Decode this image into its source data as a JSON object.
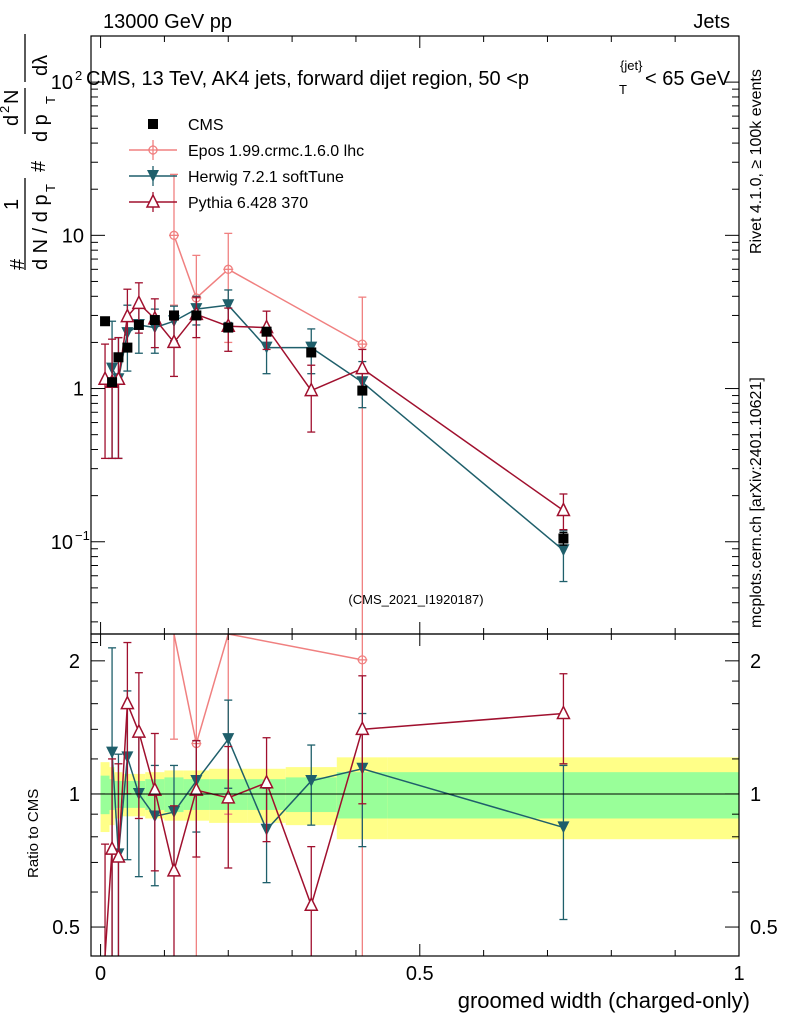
{
  "header": {
    "left": "13000 GeV pp",
    "right": "Jets"
  },
  "side": {
    "rivet": "Rivet 4.1.0, ≥ 100k events",
    "mcplots": "mcplots.cern.ch [arXiv:2401.10621]"
  },
  "colors": {
    "cms": "#000000",
    "epos": "#f08080",
    "herwig": "#1f5f6b",
    "pythia": "#a0102e",
    "band_inner": "#99ff99",
    "band_outer": "#ffff88"
  },
  "chart_data": {
    "type": "scatter",
    "title": "CMS, 13 TeV, AK4 jets, forward dijet region, 50 <p_T^{jet}< 65 GeV",
    "title_main": "CMS, 13 TeV, AK4 jets, forward dijet region, 50 <p",
    "title_sub": "T",
    "title_sup": "{jet}",
    "title_tail": "< 65 GeV",
    "watermark": "(CMS_2021_I1920187)",
    "xlabel": "groomed width (charged-only)",
    "ylabel_main": "1/dN/dp_T #  d²N/dp_T# dλ",
    "ylabel_parts": [
      "#",
      "1",
      "d N / d p",
      "T",
      "#",
      "d",
      "2",
      "N",
      "d p",
      "T",
      "dλ"
    ],
    "ratio_ylabel": "Ratio to CMS",
    "xlim": [
      -0.015,
      1.0
    ],
    "ylim": [
      0.025,
      200
    ],
    "yscale": "log",
    "ratio_ylim": [
      0.43,
      2.3
    ],
    "x_ticks": [
      {
        "v": 0,
        "label": "0"
      },
      {
        "v": 0.5,
        "label": "0.5"
      },
      {
        "v": 1,
        "label": "1"
      }
    ],
    "y_ticks": [
      {
        "v": 0.1,
        "label": "10",
        "exp": "−1"
      },
      {
        "v": 1,
        "label": "1",
        "exp": ""
      },
      {
        "v": 10,
        "label": "10",
        "exp": ""
      },
      {
        "v": 100,
        "label": "10",
        "exp": "2"
      }
    ],
    "ratio_ticks": [
      {
        "v": 0.5,
        "label": "0.5"
      },
      {
        "v": 1,
        "label": "1"
      },
      {
        "v": 2,
        "label": "2"
      }
    ],
    "legend": [
      "CMS",
      "Epos 1.99.crmc.1.6.0 lhc",
      "Herwig 7.2.1 softTune",
      "Pythia 6.428 370"
    ],
    "bins": [
      {
        "lo": 0.0,
        "hi": 0.014
      },
      {
        "lo": 0.014,
        "hi": 0.022
      },
      {
        "lo": 0.022,
        "hi": 0.034
      },
      {
        "lo": 0.034,
        "hi": 0.05
      },
      {
        "lo": 0.05,
        "hi": 0.07
      },
      {
        "lo": 0.07,
        "hi": 0.1
      },
      {
        "lo": 0.1,
        "hi": 0.13
      },
      {
        "lo": 0.13,
        "hi": 0.17
      },
      {
        "lo": 0.17,
        "hi": 0.23
      },
      {
        "lo": 0.23,
        "hi": 0.29
      },
      {
        "lo": 0.29,
        "hi": 0.37
      },
      {
        "lo": 0.37,
        "hi": 0.45
      },
      {
        "lo": 0.45,
        "hi": 1.0
      }
    ],
    "band_inner": [
      0.1,
      0.08,
      0.07,
      0.07,
      0.07,
      0.08,
      0.09,
      0.08,
      0.08,
      0.08,
      0.09,
      0.12,
      0.12
    ],
    "band_outer": [
      0.18,
      0.15,
      0.12,
      0.11,
      0.11,
      0.12,
      0.13,
      0.13,
      0.14,
      0.14,
      0.15,
      0.21,
      0.21
    ],
    "series": [
      {
        "name": "CMS",
        "key": "cms",
        "marker": "square",
        "x": [
          0.007,
          0.018,
          0.028,
          0.042,
          0.06,
          0.085,
          0.115,
          0.15,
          0.2,
          0.26,
          0.33,
          0.41,
          0.725
        ],
        "y": [
          2.75,
          1.1,
          1.6,
          1.85,
          2.6,
          2.8,
          3.0,
          3.0,
          2.5,
          2.35,
          1.72,
          0.97,
          0.105
        ],
        "yerr_lo": [
          0.1,
          0.05,
          0.07,
          0.08,
          0.1,
          0.1,
          0.1,
          0.12,
          0.1,
          0.1,
          0.08,
          0.06,
          0.01
        ],
        "yerr_hi": [
          0.1,
          0.05,
          0.07,
          0.08,
          0.1,
          0.1,
          0.1,
          0.12,
          0.1,
          0.1,
          0.08,
          0.06,
          0.01
        ],
        "ratio": []
      },
      {
        "name": "Epos 1.99.crmc.1.6.0 lhc",
        "key": "epos",
        "marker": "cross",
        "x": [
          0.115,
          0.15,
          0.2,
          0.41
        ],
        "y": [
          10.0,
          3.9,
          6.0,
          1.95
        ],
        "yerr_lo": [
          6.5,
          3.88,
          4.0,
          1.93
        ],
        "yerr_hi": [
          15.0,
          3.5,
          4.3,
          2.0
        ],
        "ratio": [
          3.33,
          1.3,
          2.4,
          2.01
        ],
        "ratio_err_lo": [
          2.0,
          1.3,
          1.5,
          1.97
        ],
        "ratio_err_hi": [
          2.0,
          1.0,
          1.7,
          1.5
        ]
      },
      {
        "name": "Herwig 7.2.1 softTune",
        "key": "herwig",
        "marker": "tri-down",
        "x": [
          0.018,
          0.028,
          0.042,
          0.06,
          0.085,
          0.115,
          0.15,
          0.2,
          0.26,
          0.33,
          0.41,
          0.725
        ],
        "y": [
          1.35,
          1.15,
          2.3,
          2.6,
          2.5,
          2.75,
          3.3,
          3.5,
          1.85,
          1.85,
          1.1,
          0.088
        ],
        "yerr_lo": [
          1.0,
          0.8,
          1.0,
          0.9,
          0.8,
          0.7,
          0.7,
          0.8,
          0.6,
          0.6,
          0.35,
          0.033
        ],
        "yerr_hi": [
          1.4,
          1.0,
          1.2,
          0.9,
          0.8,
          0.7,
          0.7,
          0.9,
          0.6,
          0.6,
          0.4,
          0.03
        ],
        "ratio": [
          1.24,
          0.73,
          1.21,
          1.0,
          0.89,
          0.91,
          1.07,
          1.33,
          0.83,
          1.07,
          1.14,
          0.84
        ],
        "ratio_err_lo": [
          0.9,
          0.5,
          0.5,
          0.35,
          0.27,
          0.25,
          0.25,
          0.3,
          0.2,
          0.22,
          0.38,
          0.32
        ],
        "ratio_err_hi": [
          0.9,
          0.5,
          0.5,
          0.35,
          0.27,
          0.25,
          0.25,
          0.3,
          0.2,
          0.22,
          0.38,
          0.32
        ]
      },
      {
        "name": "Pythia 6.428 370",
        "key": "pythia",
        "marker": "tri-up",
        "x": [
          0.007,
          0.018,
          0.028,
          0.042,
          0.06,
          0.085,
          0.115,
          0.15,
          0.2,
          0.26,
          0.33,
          0.41,
          0.725
        ],
        "y": [
          1.15,
          1.1,
          1.15,
          2.95,
          3.6,
          2.85,
          2.0,
          3.05,
          2.55,
          2.5,
          0.97,
          1.35,
          0.16
        ],
        "yerr_lo": [
          0.8,
          0.75,
          0.8,
          1.2,
          1.3,
          1.0,
          0.8,
          0.9,
          0.8,
          0.7,
          0.45,
          0.4,
          0.04
        ],
        "yerr_hi": [
          0.8,
          1.0,
          1.0,
          1.5,
          1.3,
          1.0,
          0.8,
          0.9,
          0.8,
          0.7,
          0.45,
          0.45,
          0.045
        ],
        "ratio": [
          0.42,
          0.75,
          0.72,
          1.6,
          1.38,
          1.02,
          0.67,
          1.02,
          0.98,
          1.06,
          0.56,
          1.4,
          1.52
        ],
        "ratio_err_lo": [
          0.35,
          0.45,
          0.45,
          0.6,
          0.5,
          0.35,
          0.27,
          0.3,
          0.3,
          0.28,
          0.2,
          0.45,
          0.35
        ],
        "ratio_err_hi": [
          0.35,
          0.45,
          0.45,
          0.6,
          0.5,
          0.35,
          0.27,
          0.3,
          0.3,
          0.28,
          0.2,
          0.45,
          0.35
        ]
      }
    ]
  }
}
